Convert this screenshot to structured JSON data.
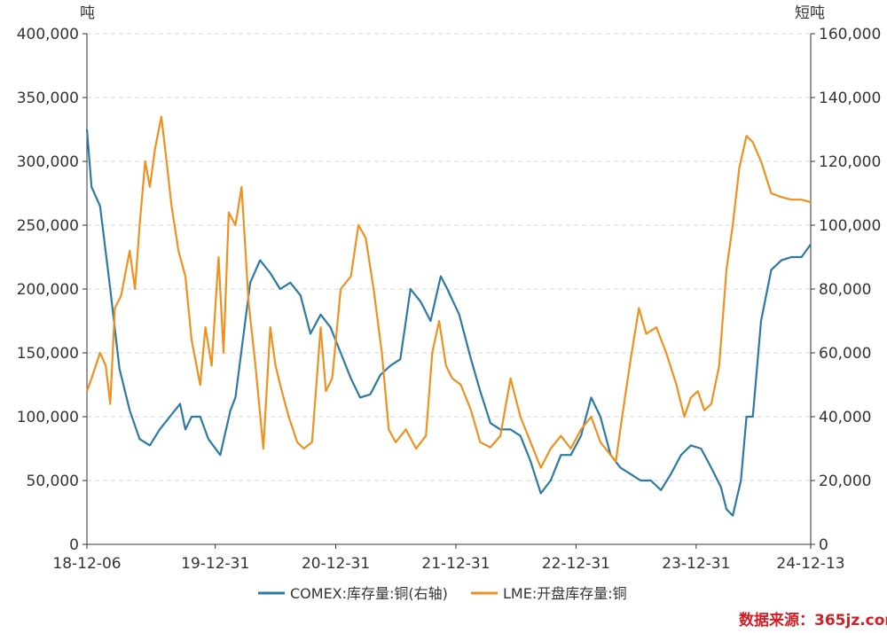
{
  "chart_data": {
    "type": "line",
    "x_ticks": [
      "18-12-06",
      "19-12-31",
      "20-12-31",
      "21-12-31",
      "22-12-31",
      "23-12-31",
      "24-12-13"
    ],
    "y_left": {
      "unit": "吨",
      "min": 0,
      "max": 400000,
      "ticks": [
        "0",
        "50,000",
        "100,000",
        "150,000",
        "200,000",
        "250,000",
        "300,000",
        "350,000",
        "400,000"
      ]
    },
    "y_right": {
      "unit": "短吨",
      "min": 0,
      "max": 160000,
      "ticks": [
        "0",
        "20,000",
        "40,000",
        "60,000",
        "80,000",
        "100,000",
        "120,000",
        "140,000",
        "160,000"
      ]
    },
    "grid": "horizontal dashed",
    "legend_position": "bottom",
    "series": [
      {
        "name": "COMEX:库存量:铜(右轴)",
        "axis": "right",
        "color": "#2b7aa6",
        "points": [
          [
            "2018-12-06",
            130000
          ],
          [
            "2018-12-20",
            112000
          ],
          [
            "2019-01-15",
            106000
          ],
          [
            "2019-02-15",
            80000
          ],
          [
            "2019-03-15",
            55000
          ],
          [
            "2019-04-15",
            42000
          ],
          [
            "2019-05-15",
            33000
          ],
          [
            "2019-06-15",
            31000
          ],
          [
            "2019-07-15",
            36000
          ],
          [
            "2019-08-15",
            40000
          ],
          [
            "2019-09-15",
            44000
          ],
          [
            "2019-10-01",
            36000
          ],
          [
            "2019-10-20",
            40000
          ],
          [
            "2019-11-15",
            40000
          ],
          [
            "2019-12-10",
            33000
          ],
          [
            "2020-01-15",
            28000
          ],
          [
            "2020-02-15",
            42000
          ],
          [
            "2020-03-01",
            46000
          ],
          [
            "2020-04-15",
            82000
          ],
          [
            "2020-05-15",
            89000
          ],
          [
            "2020-06-15",
            85000
          ],
          [
            "2020-07-15",
            80000
          ],
          [
            "2020-08-15",
            82000
          ],
          [
            "2020-09-15",
            78000
          ],
          [
            "2020-10-15",
            66000
          ],
          [
            "2020-11-15",
            72000
          ],
          [
            "2020-12-15",
            68000
          ],
          [
            "2021-01-15",
            60000
          ],
          [
            "2021-02-15",
            52000
          ],
          [
            "2021-03-15",
            46000
          ],
          [
            "2021-04-15",
            47000
          ],
          [
            "2021-05-15",
            53000
          ],
          [
            "2021-06-15",
            56000
          ],
          [
            "2021-07-15",
            58000
          ],
          [
            "2021-08-15",
            80000
          ],
          [
            "2021-09-15",
            76000
          ],
          [
            "2021-10-15",
            70000
          ],
          [
            "2021-11-15",
            84000
          ],
          [
            "2021-12-05",
            80000
          ],
          [
            "2022-01-10",
            72000
          ],
          [
            "2022-02-15",
            58000
          ],
          [
            "2022-03-15",
            48000
          ],
          [
            "2022-04-15",
            38000
          ],
          [
            "2022-05-15",
            36000
          ],
          [
            "2022-06-15",
            36000
          ],
          [
            "2022-07-15",
            34000
          ],
          [
            "2022-08-15",
            26000
          ],
          [
            "2022-09-15",
            16000
          ],
          [
            "2022-10-15",
            20000
          ],
          [
            "2022-11-15",
            28000
          ],
          [
            "2022-12-15",
            28000
          ],
          [
            "2023-01-15",
            34000
          ],
          [
            "2023-02-15",
            46000
          ],
          [
            "2023-03-15",
            40000
          ],
          [
            "2023-04-15",
            28000
          ],
          [
            "2023-05-15",
            24000
          ],
          [
            "2023-06-15",
            22000
          ],
          [
            "2023-07-15",
            20000
          ],
          [
            "2023-08-15",
            20000
          ],
          [
            "2023-09-15",
            17000
          ],
          [
            "2023-10-15",
            22000
          ],
          [
            "2023-11-15",
            28000
          ],
          [
            "2023-12-15",
            31000
          ],
          [
            "2024-01-15",
            30000
          ],
          [
            "2024-02-15",
            24000
          ],
          [
            "2024-03-15",
            18000
          ],
          [
            "2024-04-01",
            11000
          ],
          [
            "2024-04-20",
            9000
          ],
          [
            "2024-05-15",
            20000
          ],
          [
            "2024-06-01",
            40000
          ],
          [
            "2024-06-20",
            40000
          ],
          [
            "2024-07-15",
            70000
          ],
          [
            "2024-08-15",
            86000
          ],
          [
            "2024-09-15",
            89000
          ],
          [
            "2024-10-15",
            90000
          ],
          [
            "2024-11-15",
            90000
          ],
          [
            "2024-12-13",
            94000
          ]
        ]
      },
      {
        "name": "LME:开盘库存量:铜",
        "axis": "left",
        "color": "#f0901f",
        "points": [
          [
            "2018-12-06",
            120000
          ],
          [
            "2018-12-20",
            130000
          ],
          [
            "2019-01-15",
            150000
          ],
          [
            "2019-02-01",
            140000
          ],
          [
            "2019-02-15",
            110000
          ],
          [
            "2019-03-01",
            185000
          ],
          [
            "2019-03-20",
            195000
          ],
          [
            "2019-04-15",
            230000
          ],
          [
            "2019-05-01",
            200000
          ],
          [
            "2019-05-15",
            250000
          ],
          [
            "2019-06-01",
            300000
          ],
          [
            "2019-06-15",
            280000
          ],
          [
            "2019-07-01",
            310000
          ],
          [
            "2019-07-20",
            335000
          ],
          [
            "2019-08-05",
            300000
          ],
          [
            "2019-08-20",
            265000
          ],
          [
            "2019-09-10",
            230000
          ],
          [
            "2019-10-01",
            210000
          ],
          [
            "2019-10-20",
            160000
          ],
          [
            "2019-11-15",
            125000
          ],
          [
            "2019-12-01",
            170000
          ],
          [
            "2019-12-20",
            140000
          ],
          [
            "2020-01-10",
            225000
          ],
          [
            "2020-01-25",
            150000
          ],
          [
            "2020-02-10",
            260000
          ],
          [
            "2020-03-01",
            250000
          ],
          [
            "2020-03-20",
            280000
          ],
          [
            "2020-04-10",
            190000
          ],
          [
            "2020-05-01",
            140000
          ],
          [
            "2020-05-25",
            75000
          ],
          [
            "2020-06-15",
            170000
          ],
          [
            "2020-07-01",
            140000
          ],
          [
            "2020-07-20",
            120000
          ],
          [
            "2020-08-10",
            100000
          ],
          [
            "2020-09-05",
            80000
          ],
          [
            "2020-09-25",
            75000
          ],
          [
            "2020-10-20",
            80000
          ],
          [
            "2020-11-15",
            170000
          ],
          [
            "2020-12-01",
            120000
          ],
          [
            "2020-12-20",
            130000
          ],
          [
            "2021-01-15",
            200000
          ],
          [
            "2021-02-15",
            210000
          ],
          [
            "2021-03-10",
            250000
          ],
          [
            "2021-04-01",
            240000
          ],
          [
            "2021-04-25",
            200000
          ],
          [
            "2021-05-20",
            150000
          ],
          [
            "2021-06-10",
            90000
          ],
          [
            "2021-07-01",
            80000
          ],
          [
            "2021-08-01",
            90000
          ],
          [
            "2021-09-01",
            75000
          ],
          [
            "2021-10-01",
            85000
          ],
          [
            "2021-10-20",
            150000
          ],
          [
            "2021-11-10",
            175000
          ],
          [
            "2021-12-01",
            140000
          ],
          [
            "2021-12-20",
            130000
          ],
          [
            "2022-01-15",
            125000
          ],
          [
            "2022-02-15",
            105000
          ],
          [
            "2022-03-15",
            80000
          ],
          [
            "2022-04-15",
            76000
          ],
          [
            "2022-05-15",
            85000
          ],
          [
            "2022-06-15",
            130000
          ],
          [
            "2022-07-15",
            100000
          ],
          [
            "2022-08-15",
            80000
          ],
          [
            "2022-09-15",
            60000
          ],
          [
            "2022-10-15",
            75000
          ],
          [
            "2022-11-15",
            85000
          ],
          [
            "2022-12-15",
            75000
          ],
          [
            "2023-01-15",
            90000
          ],
          [
            "2023-02-15",
            100000
          ],
          [
            "2023-03-15",
            80000
          ],
          [
            "2023-04-15",
            70000
          ],
          [
            "2023-05-01",
            65000
          ],
          [
            "2023-05-20",
            100000
          ],
          [
            "2023-06-15",
            145000
          ],
          [
            "2023-07-10",
            185000
          ],
          [
            "2023-08-01",
            165000
          ],
          [
            "2023-09-01",
            170000
          ],
          [
            "2023-10-01",
            150000
          ],
          [
            "2023-11-01",
            125000
          ],
          [
            "2023-11-25",
            100000
          ],
          [
            "2023-12-15",
            115000
          ],
          [
            "2024-01-05",
            120000
          ],
          [
            "2024-01-25",
            105000
          ],
          [
            "2024-02-15",
            110000
          ],
          [
            "2024-03-10",
            140000
          ],
          [
            "2024-04-01",
            215000
          ],
          [
            "2024-04-20",
            250000
          ],
          [
            "2024-05-10",
            295000
          ],
          [
            "2024-06-01",
            320000
          ],
          [
            "2024-06-20",
            315000
          ],
          [
            "2024-07-15",
            300000
          ],
          [
            "2024-08-15",
            275000
          ],
          [
            "2024-09-15",
            272000
          ],
          [
            "2024-10-15",
            270000
          ],
          [
            "2024-11-15",
            270000
          ],
          [
            "2024-12-13",
            268000
          ]
        ]
      }
    ]
  },
  "legend": [
    {
      "label": "COMEX:库存量:铜(右轴)",
      "color": "#2b7aa6"
    },
    {
      "label": "LME:开盘库存量:铜",
      "color": "#f0901f"
    }
  ],
  "watermark": "数据来源：365jz.com"
}
